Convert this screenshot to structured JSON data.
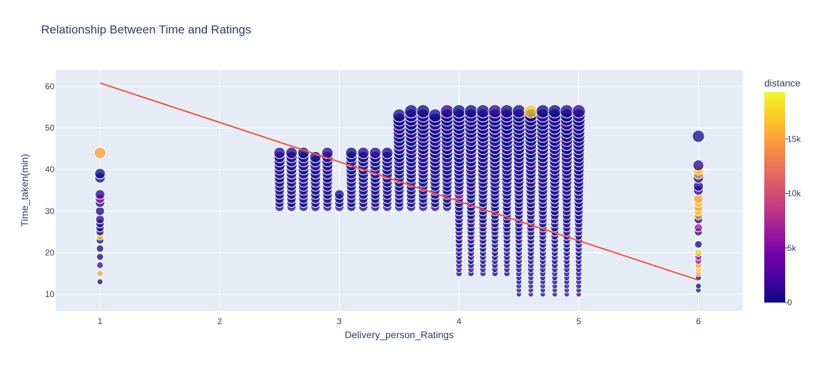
{
  "chart_data": {
    "type": "scatter",
    "title": "Relationship Between Time and Ratings",
    "xlabel": "Delivery_person_Ratings",
    "ylabel": "Time_taken(min)",
    "xlim": [
      0.63,
      6.37
    ],
    "ylim": [
      6,
      64
    ],
    "x_ticks": [
      1,
      2,
      3,
      4,
      5,
      6
    ],
    "y_ticks": [
      10,
      20,
      30,
      40,
      50,
      60
    ],
    "grid": true,
    "plot_background": "#e5ecf6",
    "marker_size_variable": "Time_taken(min)",
    "marker_color_variable": "distance",
    "colorbar": {
      "title": "distance",
      "range": [
        0,
        19300
      ],
      "ticks": [
        0,
        5000,
        10000,
        15000
      ],
      "tick_labels": [
        "0",
        "5k",
        "10k",
        "15k"
      ],
      "colorscale": [
        "#0d0887",
        "#46039f",
        "#7201a8",
        "#9c179e",
        "#bd3786",
        "#d8576b",
        "#ed7953",
        "#fb9f3a",
        "#fdca26",
        "#f0f921"
      ]
    },
    "groups": [
      {
        "x": 1.0,
        "y_min": 13,
        "y_max": 44,
        "y_values": [
          13,
          15,
          17,
          19,
          21,
          23,
          24,
          25,
          26,
          27,
          28,
          30,
          32,
          33,
          34,
          38,
          39,
          44
        ],
        "high_distance_y": [
          15,
          24,
          44
        ],
        "mid_distance_y": [
          33
        ]
      },
      {
        "x": 2.5,
        "y_min": 31,
        "y_max": 44
      },
      {
        "x": 2.6,
        "y_min": 31,
        "y_max": 44
      },
      {
        "x": 2.7,
        "y_min": 31,
        "y_max": 44
      },
      {
        "x": 2.8,
        "y_min": 31,
        "y_max": 43
      },
      {
        "x": 2.9,
        "y_min": 31,
        "y_max": 44
      },
      {
        "x": 3.0,
        "y_min": 31,
        "y_max": 34
      },
      {
        "x": 3.1,
        "y_min": 31,
        "y_max": 44
      },
      {
        "x": 3.2,
        "y_min": 31,
        "y_max": 44
      },
      {
        "x": 3.3,
        "y_min": 31,
        "y_max": 44
      },
      {
        "x": 3.4,
        "y_min": 31,
        "y_max": 44
      },
      {
        "x": 3.5,
        "y_min": 31,
        "y_max": 53
      },
      {
        "x": 3.6,
        "y_min": 31,
        "y_max": 54
      },
      {
        "x": 3.7,
        "y_min": 31,
        "y_max": 54
      },
      {
        "x": 3.8,
        "y_min": 31,
        "y_max": 53
      },
      {
        "x": 3.9,
        "y_min": 31,
        "y_max": 54
      },
      {
        "x": 4.0,
        "y_min": 15,
        "y_max": 54,
        "mid_distance_y": [
          34
        ]
      },
      {
        "x": 4.1,
        "y_min": 15,
        "y_max": 54
      },
      {
        "x": 4.2,
        "y_min": 15,
        "y_max": 54
      },
      {
        "x": 4.3,
        "y_min": 15,
        "y_max": 54
      },
      {
        "x": 4.4,
        "y_min": 15,
        "y_max": 54
      },
      {
        "x": 4.5,
        "y_min": 10,
        "y_max": 54
      },
      {
        "x": 4.6,
        "y_min": 10,
        "y_max": 54,
        "high_distance_y": [
          54
        ]
      },
      {
        "x": 4.7,
        "y_min": 10,
        "y_max": 54
      },
      {
        "x": 4.8,
        "y_min": 10,
        "y_max": 54
      },
      {
        "x": 4.9,
        "y_min": 10,
        "y_max": 54
      },
      {
        "x": 5.0,
        "y_min": 10,
        "y_max": 54
      },
      {
        "x": 6.0,
        "y_min": 11,
        "y_max": 48,
        "y_values": [
          11,
          12,
          14,
          15,
          16,
          17,
          18,
          19,
          20,
          22,
          25,
          26,
          28,
          29,
          30,
          31,
          32,
          33,
          35,
          36,
          38,
          39,
          40,
          41,
          48
        ],
        "high_distance_y": [
          15,
          16,
          17,
          20,
          29,
          30,
          31,
          32,
          33,
          39,
          40
        ],
        "mid_distance_y": [
          18,
          19,
          26
        ]
      }
    ],
    "trendline": {
      "type": "ols",
      "color": "#ef553b",
      "points": [
        [
          1.0,
          60.8
        ],
        [
          6.0,
          13.4
        ]
      ]
    }
  }
}
